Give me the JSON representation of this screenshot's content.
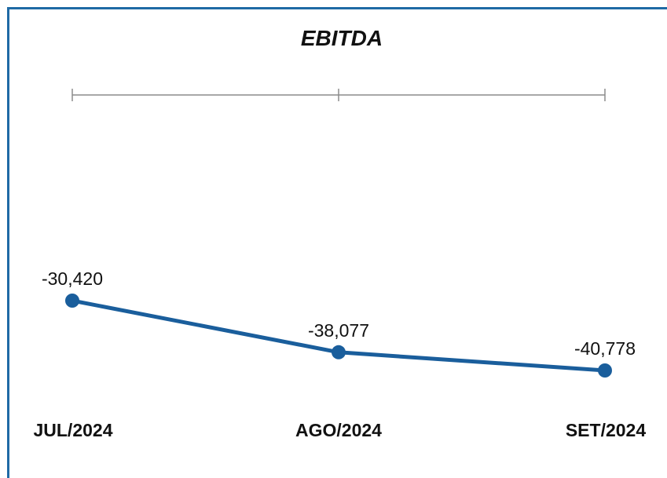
{
  "chart_data": {
    "type": "line",
    "title": "EBITDA",
    "categories": [
      "JUL/2024",
      "AGO/2024",
      "SET/2024"
    ],
    "series": [
      {
        "values": [
          -30420,
          -38077,
          -40778
        ],
        "value_labels": [
          "-30,420",
          "-38,077",
          "-40,778"
        ]
      }
    ],
    "color": "#1a5e9c",
    "axis_color": "#8c8c8c",
    "ylim": [
      -42000,
      -30000
    ],
    "grid": false,
    "legend": "none"
  }
}
